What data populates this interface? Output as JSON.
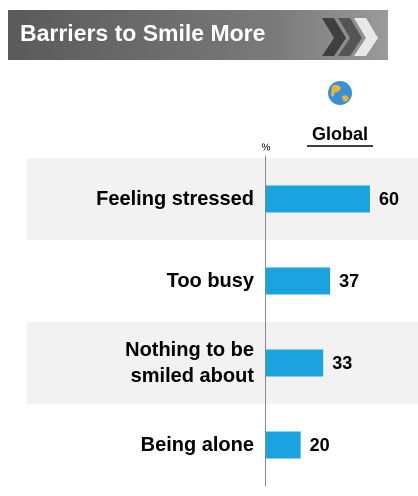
{
  "chart_data": {
    "type": "bar",
    "orientation": "horizontal",
    "title": "Barriers to Smile More",
    "unit_label": "%",
    "categories": [
      "Feeling stressed",
      "Too busy",
      "Nothing to be smiled about",
      "Being alone"
    ],
    "series": [
      {
        "name": "Global",
        "color": "#1aa3df",
        "values": [
          60,
          37,
          33,
          20
        ]
      }
    ]
  }
}
